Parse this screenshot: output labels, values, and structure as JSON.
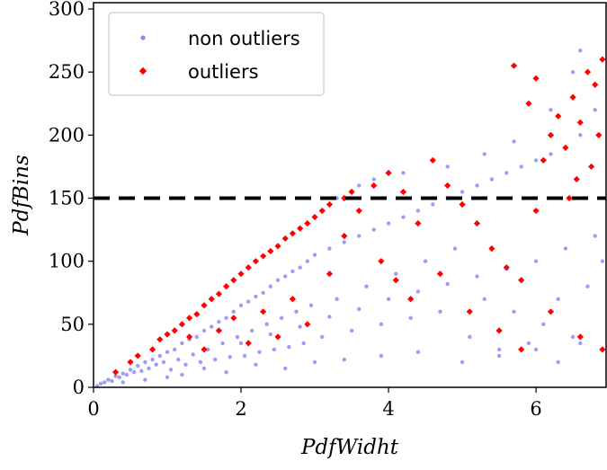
{
  "chart_data": {
    "type": "scatter",
    "xlabel": "PdfWidht",
    "ylabel": "PdfBins",
    "xlim": [
      0,
      6.95
    ],
    "ylim": [
      0,
      305
    ],
    "x_ticks": [
      0,
      2,
      4,
      6
    ],
    "y_ticks": [
      0,
      50,
      100,
      150,
      200,
      250,
      300
    ],
    "x_tick_labels": [
      "0",
      "2",
      "4",
      "6"
    ],
    "y_tick_labels": [
      "0",
      "50",
      "100",
      "150",
      "200",
      "250",
      "300"
    ],
    "grid": false,
    "legend_position": "top-left",
    "threshold_line": {
      "y": 150,
      "style": "dashed",
      "color": "#000000"
    },
    "series": [
      {
        "name": "non outliers",
        "marker": "circle",
        "color": "#3b3bf0",
        "points": [
          [
            0.05,
            1
          ],
          [
            0.1,
            3
          ],
          [
            0.15,
            4
          ],
          [
            0.2,
            6
          ],
          [
            0.25,
            5
          ],
          [
            0.3,
            9
          ],
          [
            0.35,
            8
          ],
          [
            0.4,
            11
          ],
          [
            0.45,
            10
          ],
          [
            0.5,
            14
          ],
          [
            0.55,
            12
          ],
          [
            0.6,
            17
          ],
          [
            0.65,
            13
          ],
          [
            0.7,
            20
          ],
          [
            0.75,
            15
          ],
          [
            0.8,
            22
          ],
          [
            0.85,
            18
          ],
          [
            0.9,
            25
          ],
          [
            0.95,
            20
          ],
          [
            1.0,
            28
          ],
          [
            1.05,
            14
          ],
          [
            1.1,
            30
          ],
          [
            1.15,
            22
          ],
          [
            1.2,
            35
          ],
          [
            1.25,
            18
          ],
          [
            1.3,
            38
          ],
          [
            1.35,
            26
          ],
          [
            1.4,
            40
          ],
          [
            1.45,
            20
          ],
          [
            1.5,
            45
          ],
          [
            1.55,
            30
          ],
          [
            1.6,
            48
          ],
          [
            1.65,
            22
          ],
          [
            1.7,
            52
          ],
          [
            1.75,
            35
          ],
          [
            1.8,
            55
          ],
          [
            1.85,
            24
          ],
          [
            1.9,
            60
          ],
          [
            1.95,
            40
          ],
          [
            2.0,
            65
          ],
          [
            2.05,
            25
          ],
          [
            2.1,
            68
          ],
          [
            2.15,
            45
          ],
          [
            2.2,
            72
          ],
          [
            2.25,
            28
          ],
          [
            2.3,
            75
          ],
          [
            2.35,
            50
          ],
          [
            2.4,
            80
          ],
          [
            2.45,
            30
          ],
          [
            2.5,
            85
          ],
          [
            2.55,
            55
          ],
          [
            2.6,
            88
          ],
          [
            2.65,
            32
          ],
          [
            2.7,
            92
          ],
          [
            2.75,
            60
          ],
          [
            2.8,
            95
          ],
          [
            2.85,
            35
          ],
          [
            2.9,
            100
          ],
          [
            2.95,
            65
          ],
          [
            3.0,
            105
          ],
          [
            3.1,
            40
          ],
          [
            3.2,
            110
          ],
          [
            3.3,
            70
          ],
          [
            3.4,
            115
          ],
          [
            3.5,
            45
          ],
          [
            3.6,
            120
          ],
          [
            3.7,
            80
          ],
          [
            3.8,
            125
          ],
          [
            3.9,
            50
          ],
          [
            4.0,
            130
          ],
          [
            4.1,
            90
          ],
          [
            4.2,
            135
          ],
          [
            4.3,
            55
          ],
          [
            4.4,
            140
          ],
          [
            4.5,
            100
          ],
          [
            4.6,
            145
          ],
          [
            4.7,
            60
          ],
          [
            4.8,
            150
          ],
          [
            4.9,
            110
          ],
          [
            5.0,
            155
          ],
          [
            5.1,
            40
          ],
          [
            5.2,
            160
          ],
          [
            5.3,
            70
          ],
          [
            5.4,
            165
          ],
          [
            5.5,
            30
          ],
          [
            5.6,
            170
          ],
          [
            5.7,
            60
          ],
          [
            5.8,
            175
          ],
          [
            5.9,
            35
          ],
          [
            6.0,
            180
          ],
          [
            6.1,
            50
          ],
          [
            6.2,
            185
          ],
          [
            6.3,
            70
          ],
          [
            6.4,
            190
          ],
          [
            6.5,
            40
          ],
          [
            6.6,
            200
          ],
          [
            6.7,
            80
          ],
          [
            6.8,
            220
          ],
          [
            6.9,
            100
          ],
          [
            6.9,
            260
          ],
          [
            3.3,
            150
          ],
          [
            3.6,
            160
          ],
          [
            4.2,
            170
          ],
          [
            4.8,
            175
          ],
          [
            5.3,
            185
          ],
          [
            5.7,
            195
          ],
          [
            6.2,
            220
          ],
          [
            6.5,
            250
          ],
          [
            6.6,
            267
          ],
          [
            3.8,
            165
          ],
          [
            1.2,
            10
          ],
          [
            1.5,
            15
          ],
          [
            1.8,
            12
          ],
          [
            2.2,
            18
          ],
          [
            2.6,
            15
          ],
          [
            3.0,
            20
          ],
          [
            3.4,
            22
          ],
          [
            3.9,
            25
          ],
          [
            4.4,
            28
          ],
          [
            5.0,
            20
          ],
          [
            5.5,
            25
          ],
          [
            6.0,
            30
          ],
          [
            6.3,
            20
          ],
          [
            6.6,
            35
          ],
          [
            2.0,
            35
          ],
          [
            2.4,
            42
          ],
          [
            2.8,
            48
          ],
          [
            3.2,
            56
          ],
          [
            3.6,
            62
          ],
          [
            4.0,
            70
          ],
          [
            4.4,
            76
          ],
          [
            4.8,
            82
          ],
          [
            5.2,
            88
          ],
          [
            5.6,
            94
          ],
          [
            6.0,
            100
          ],
          [
            6.4,
            110
          ],
          [
            6.8,
            120
          ],
          [
            1.0,
            8
          ],
          [
            0.7,
            6
          ],
          [
            0.4,
            4
          ]
        ]
      },
      {
        "name": "outliers",
        "marker": "diamond",
        "color": "#ff0000",
        "points": [
          [
            0.3,
            12
          ],
          [
            0.5,
            20
          ],
          [
            0.6,
            25
          ],
          [
            0.8,
            30
          ],
          [
            0.9,
            38
          ],
          [
            1.0,
            42
          ],
          [
            1.1,
            45
          ],
          [
            1.2,
            50
          ],
          [
            1.3,
            55
          ],
          [
            1.4,
            58
          ],
          [
            1.5,
            65
          ],
          [
            1.6,
            70
          ],
          [
            1.7,
            74
          ],
          [
            1.8,
            80
          ],
          [
            1.9,
            85
          ],
          [
            2.0,
            90
          ],
          [
            2.1,
            95
          ],
          [
            2.2,
            100
          ],
          [
            2.3,
            104
          ],
          [
            2.4,
            108
          ],
          [
            2.5,
            112
          ],
          [
            2.6,
            118
          ],
          [
            2.7,
            122
          ],
          [
            2.8,
            126
          ],
          [
            2.9,
            130
          ],
          [
            3.0,
            135
          ],
          [
            3.1,
            140
          ],
          [
            3.2,
            145
          ],
          [
            3.4,
            150
          ],
          [
            3.5,
            155
          ],
          [
            1.3,
            40
          ],
          [
            1.5,
            30
          ],
          [
            1.7,
            45
          ],
          [
            1.9,
            55
          ],
          [
            2.1,
            35
          ],
          [
            2.3,
            60
          ],
          [
            2.5,
            40
          ],
          [
            2.7,
            70
          ],
          [
            2.9,
            50
          ],
          [
            3.2,
            90
          ],
          [
            3.4,
            120
          ],
          [
            3.6,
            140
          ],
          [
            3.8,
            160
          ],
          [
            4.0,
            170
          ],
          [
            4.2,
            155
          ],
          [
            4.4,
            130
          ],
          [
            4.6,
            180
          ],
          [
            4.8,
            160
          ],
          [
            5.0,
            145
          ],
          [
            5.2,
            130
          ],
          [
            5.4,
            110
          ],
          [
            5.6,
            95
          ],
          [
            5.8,
            85
          ],
          [
            6.0,
            140
          ],
          [
            6.1,
            180
          ],
          [
            6.2,
            200
          ],
          [
            6.3,
            215
          ],
          [
            6.4,
            190
          ],
          [
            6.5,
            230
          ],
          [
            6.6,
            210
          ],
          [
            6.7,
            250
          ],
          [
            6.8,
            240
          ],
          [
            6.9,
            260
          ],
          [
            6.85,
            200
          ],
          [
            6.75,
            175
          ],
          [
            6.55,
            165
          ],
          [
            6.45,
            150
          ],
          [
            5.9,
            225
          ],
          [
            5.7,
            255
          ],
          [
            6.0,
            245
          ],
          [
            3.9,
            100
          ],
          [
            4.1,
            85
          ],
          [
            4.3,
            70
          ],
          [
            4.7,
            90
          ],
          [
            5.1,
            60
          ],
          [
            5.5,
            45
          ],
          [
            5.8,
            30
          ],
          [
            6.2,
            60
          ],
          [
            6.6,
            40
          ],
          [
            6.9,
            30
          ]
        ]
      }
    ]
  }
}
